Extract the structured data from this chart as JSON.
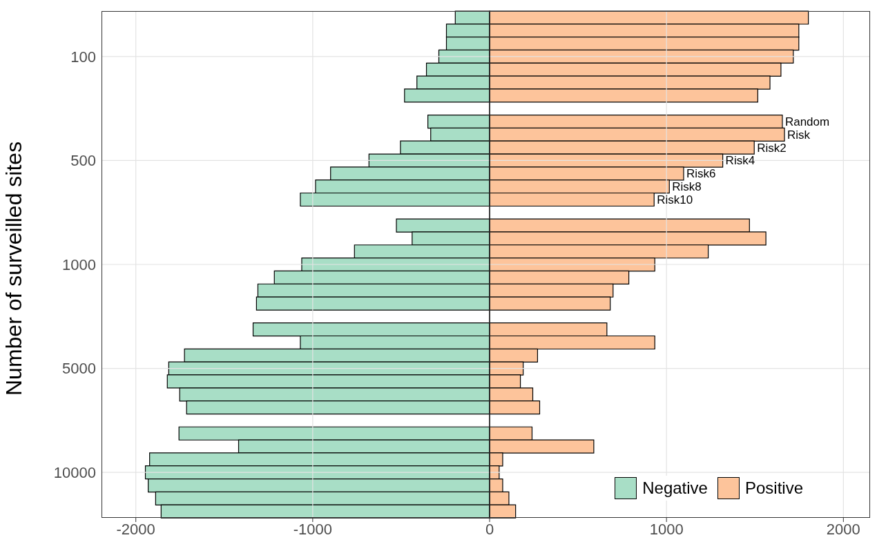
{
  "chart_data": {
    "type": "bar",
    "orientation": "horizontal",
    "stacked": true,
    "ylabel": "Number of surveilled sites",
    "categories": [
      null,
      null,
      null,
      "100",
      null,
      null,
      null,
      null,
      null,
      null,
      null,
      "500",
      null,
      null,
      null,
      null,
      null,
      null,
      null,
      "1000",
      null,
      null,
      null,
      null,
      null,
      null,
      null,
      "5000",
      null,
      null,
      null,
      null,
      null,
      null,
      null,
      "10000",
      null,
      null,
      null
    ],
    "series": [
      {
        "name": "Negative",
        "color": "#a8dec6",
        "values": [
          -194,
          -244,
          -244,
          -287,
          -357,
          -411,
          -481,
          null,
          -349,
          -333,
          -504,
          -682,
          -899,
          -984,
          -1070,
          null,
          -527,
          -438,
          -764,
          -1062,
          -1217,
          -1310,
          -1318,
          null,
          -1337,
          -1070,
          -1725,
          -1814,
          -1822,
          -1752,
          -1713,
          null,
          -1756,
          -1419,
          -1922,
          -1946,
          -1930,
          -1888,
          -1857
        ]
      },
      {
        "name": "Positive",
        "color": "#fdc49b",
        "values": [
          1802,
          1748,
          1748,
          1717,
          1647,
          1585,
          1516,
          null,
          1655,
          1667,
          1496,
          1318,
          1097,
          1016,
          930,
          null,
          1469,
          1562,
          1236,
          934,
          787,
          698,
          682,
          null,
          663,
          934,
          271,
          190,
          174,
          244,
          283,
          null,
          240,
          589,
          74,
          54,
          74,
          109,
          147
        ]
      }
    ],
    "xlim": [
      -2194,
      2151
    ],
    "xticks": [
      -2000,
      -1000,
      0,
      1000,
      2000
    ],
    "grid": true,
    "legend": "bottom right",
    "ref_lines": [
      {
        "axis": "x",
        "value": 0,
        "color": "#000000"
      }
    ],
    "annotations": [
      {
        "text": "Random",
        "x": 1655
      },
      {
        "text": "Risk",
        "x": 1667
      },
      {
        "text": "Risk2",
        "x": 1496
      },
      {
        "text": "Risk4",
        "x": 1318
      },
      {
        "text": "Risk6",
        "x": 1097
      },
      {
        "text": "Risk8",
        "x": 1016
      },
      {
        "text": "Risk10",
        "x": 930
      }
    ]
  }
}
